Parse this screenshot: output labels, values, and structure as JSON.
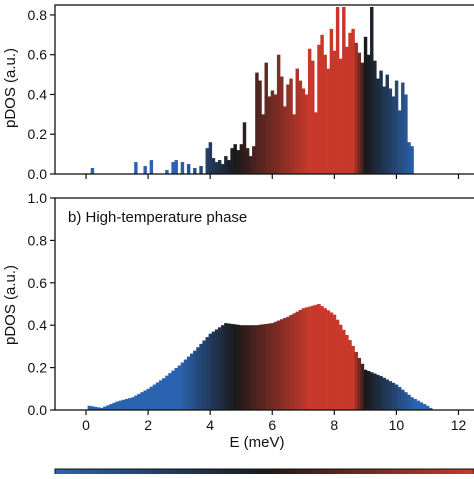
{
  "chart_data": [
    {
      "type": "bar",
      "title": "",
      "xlabel": "",
      "ylabel": "pDOS (a.u.)",
      "xlim": [
        -1,
        12.5
      ],
      "ylim": [
        0,
        0.85
      ],
      "xticks": [
        0,
        2,
        4,
        6,
        8,
        10,
        12
      ],
      "yticks": [
        0.0,
        0.2,
        0.4,
        0.6,
        0.8
      ],
      "ytick_labels": [
        "0.0",
        "0.2",
        "0.4",
        "0.6",
        "0.8"
      ],
      "xtick_labels_shown": false,
      "grid": false,
      "bin_width": 0.1,
      "bars": [
        [
          0.2,
          0.03
        ],
        [
          1.6,
          0.06
        ],
        [
          1.9,
          0.04
        ],
        [
          2.1,
          0.07
        ],
        [
          2.6,
          0.02
        ],
        [
          2.8,
          0.06
        ],
        [
          2.9,
          0.07
        ],
        [
          3.1,
          0.06
        ],
        [
          3.3,
          0.05
        ],
        [
          3.5,
          0.03
        ],
        [
          3.7,
          0.04
        ],
        [
          3.9,
          0.13
        ],
        [
          4.0,
          0.16
        ],
        [
          4.1,
          0.08
        ],
        [
          4.2,
          0.06
        ],
        [
          4.3,
          0.07
        ],
        [
          4.4,
          0.05
        ],
        [
          4.5,
          0.09
        ],
        [
          4.6,
          0.07
        ],
        [
          4.7,
          0.13
        ],
        [
          4.8,
          0.15
        ],
        [
          4.9,
          0.12
        ],
        [
          5.0,
          0.15
        ],
        [
          5.1,
          0.26
        ],
        [
          5.2,
          0.13
        ],
        [
          5.3,
          0.09
        ],
        [
          5.4,
          0.14
        ],
        [
          5.5,
          0.51
        ],
        [
          5.6,
          0.47
        ],
        [
          5.7,
          0.3
        ],
        [
          5.8,
          0.56
        ],
        [
          5.9,
          0.39
        ],
        [
          6.0,
          0.42
        ],
        [
          6.1,
          0.4
        ],
        [
          6.2,
          0.6
        ],
        [
          6.3,
          0.49
        ],
        [
          6.4,
          0.34
        ],
        [
          6.5,
          0.45
        ],
        [
          6.6,
          0.48
        ],
        [
          6.7,
          0.3
        ],
        [
          6.8,
          0.53
        ],
        [
          6.9,
          0.47
        ],
        [
          7.0,
          0.43
        ],
        [
          7.1,
          0.4
        ],
        [
          7.2,
          0.63
        ],
        [
          7.3,
          0.57
        ],
        [
          7.4,
          0.31
        ],
        [
          7.5,
          0.65
        ],
        [
          7.6,
          0.7
        ],
        [
          7.7,
          0.6
        ],
        [
          7.8,
          0.53
        ],
        [
          7.9,
          0.73
        ],
        [
          8.0,
          0.62
        ],
        [
          8.1,
          0.84
        ],
        [
          8.2,
          0.58
        ],
        [
          8.3,
          0.84
        ],
        [
          8.4,
          0.64
        ],
        [
          8.5,
          0.71
        ],
        [
          8.6,
          0.73
        ],
        [
          8.7,
          0.66
        ],
        [
          8.8,
          0.61
        ],
        [
          8.9,
          0.56
        ],
        [
          9.0,
          0.69
        ],
        [
          9.1,
          0.6
        ],
        [
          9.2,
          0.84
        ],
        [
          9.3,
          0.57
        ],
        [
          9.4,
          0.48
        ],
        [
          9.5,
          0.52
        ],
        [
          9.6,
          0.44
        ],
        [
          9.7,
          0.5
        ],
        [
          9.8,
          0.43
        ],
        [
          9.9,
          0.39
        ],
        [
          10.0,
          0.47
        ],
        [
          10.1,
          0.32
        ],
        [
          10.2,
          0.46
        ],
        [
          10.3,
          0.4
        ],
        [
          10.4,
          0.16
        ],
        [
          10.5,
          0.14
        ]
      ]
    },
    {
      "type": "bar",
      "title": "",
      "annotation": "b) High-temperature phase",
      "xlabel": "E (meV)",
      "ylabel": "pDOS (a.u.)",
      "xlim": [
        -1,
        12.5
      ],
      "ylim": [
        0,
        1.0
      ],
      "xticks": [
        0,
        2,
        4,
        6,
        8,
        10,
        12
      ],
      "xtick_labels": [
        "0",
        "2",
        "4",
        "6",
        "8",
        "10",
        "12"
      ],
      "yticks": [
        0.0,
        0.2,
        0.4,
        0.6,
        0.8,
        1.0
      ],
      "ytick_labels": [
        "0.0",
        "0.2",
        "0.4",
        "0.6",
        "0.8",
        "1.0"
      ],
      "grid": false,
      "bin_width": 0.1,
      "profile": [
        [
          0.1,
          0.02
        ],
        [
          0.5,
          0.01
        ],
        [
          1.0,
          0.04
        ],
        [
          1.5,
          0.06
        ],
        [
          2.0,
          0.1
        ],
        [
          2.5,
          0.15
        ],
        [
          3.0,
          0.21
        ],
        [
          3.5,
          0.28
        ],
        [
          4.0,
          0.36
        ],
        [
          4.5,
          0.41
        ],
        [
          5.0,
          0.4
        ],
        [
          5.5,
          0.4
        ],
        [
          6.0,
          0.41
        ],
        [
          6.5,
          0.44
        ],
        [
          7.0,
          0.48
        ],
        [
          7.5,
          0.5
        ],
        [
          8.0,
          0.45
        ],
        [
          8.5,
          0.33
        ],
        [
          9.0,
          0.19
        ],
        [
          9.5,
          0.16
        ],
        [
          10.0,
          0.12
        ],
        [
          10.5,
          0.06
        ],
        [
          11.0,
          0.02
        ],
        [
          11.2,
          0.0
        ]
      ]
    }
  ],
  "colorbar": {
    "colors": [
      "#2b63b0",
      "#1a1a1a",
      "#c8392b"
    ]
  }
}
